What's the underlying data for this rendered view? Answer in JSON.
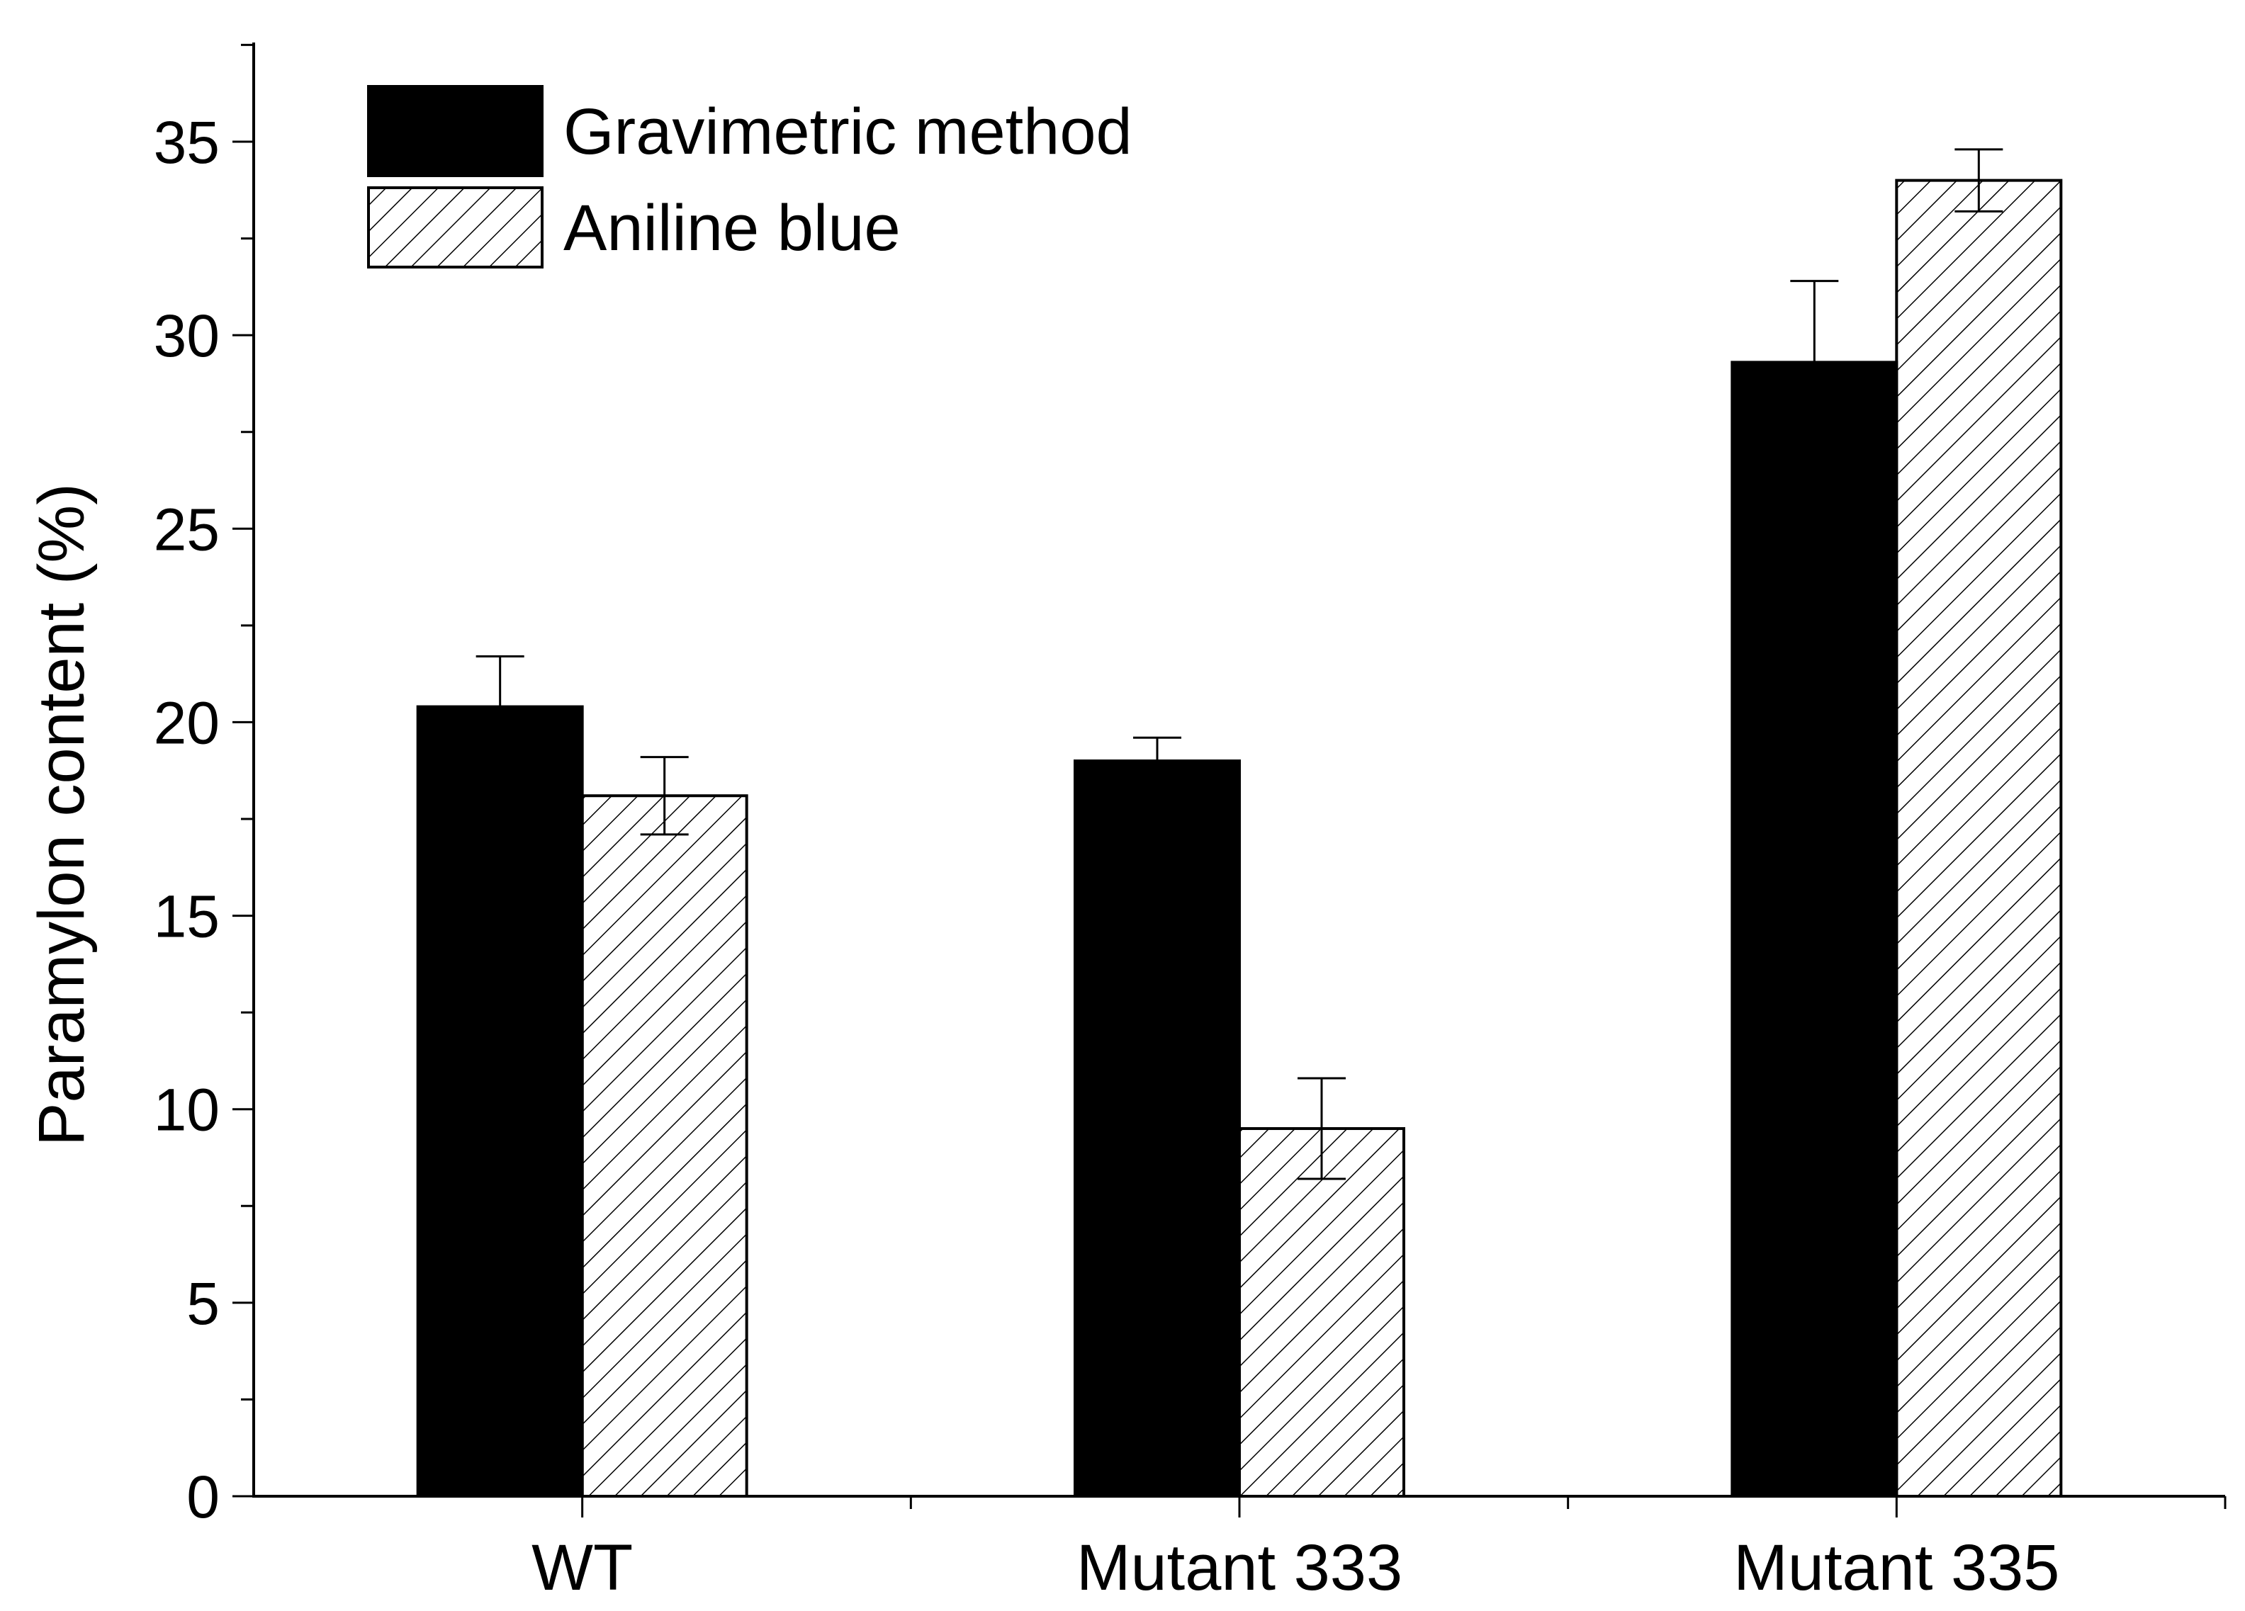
{
  "chart_data": {
    "type": "bar",
    "title": "",
    "xlabel": "",
    "ylabel": "Paramylon content (%)",
    "ylim": [
      0,
      37.5
    ],
    "yticks": [
      0,
      5,
      10,
      15,
      20,
      25,
      30,
      35
    ],
    "grid": false,
    "legend_position": "top-left",
    "categories": [
      "WT",
      "Mutant 333",
      "Mutant 335"
    ],
    "series": [
      {
        "name": "Gravimetric method",
        "pattern": "solid",
        "color": "#000000",
        "values": [
          20.4,
          19.0,
          29.3
        ],
        "errors": [
          1.3,
          0.6,
          2.1
        ]
      },
      {
        "name": "Aniline blue",
        "pattern": "hatched",
        "color": "#000000",
        "values": [
          18.1,
          9.5,
          34.0
        ],
        "errors": [
          1.0,
          1.3,
          0.8
        ]
      }
    ]
  }
}
